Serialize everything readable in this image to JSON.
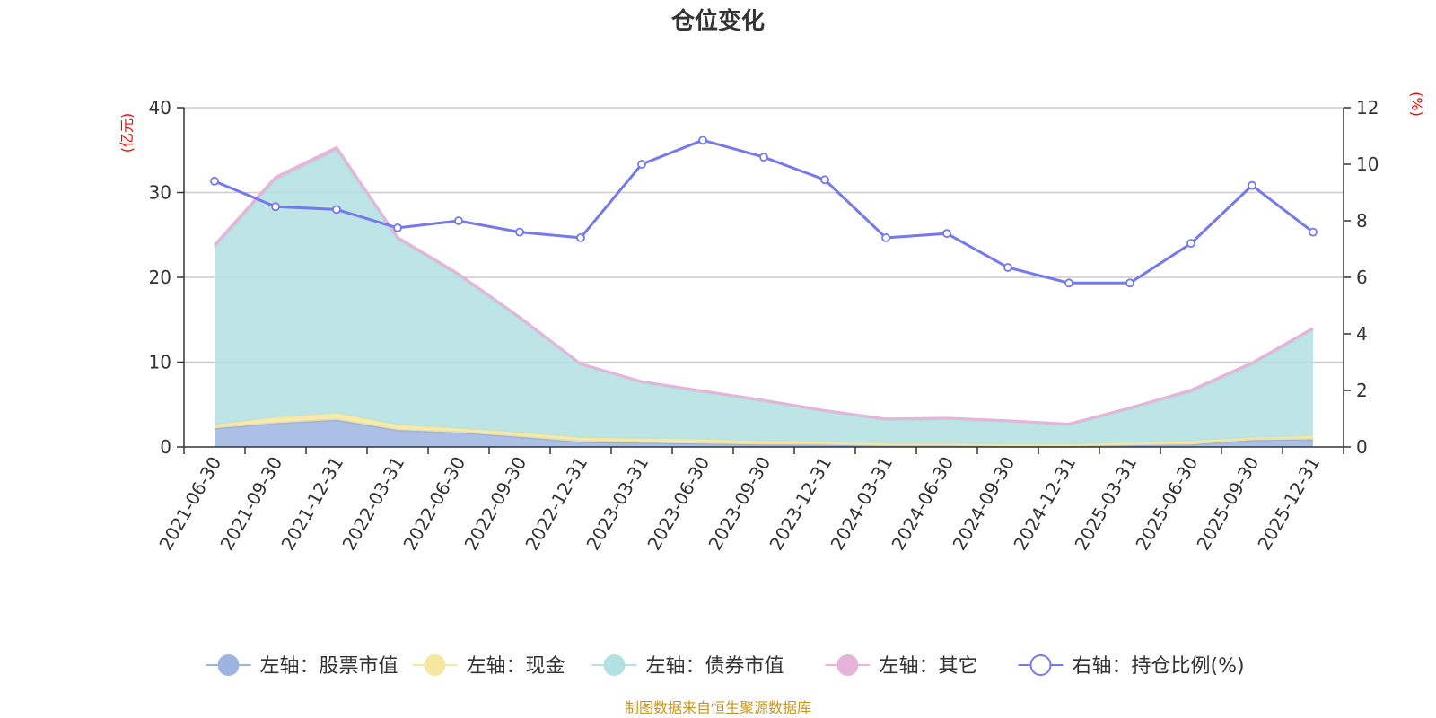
{
  "chart_data": {
    "type": "area",
    "title": "仓位变化",
    "left_axis_unit": "(亿元)",
    "right_axis_unit": "(%)",
    "ylim_left": [
      0,
      40
    ],
    "yticks_left": [
      0,
      10,
      20,
      30,
      40
    ],
    "ylim_right": [
      0,
      12
    ],
    "yticks_right": [
      0,
      2,
      4,
      6,
      8,
      10,
      12
    ],
    "categories": [
      "2021-06-30",
      "2021-09-30",
      "2021-12-31",
      "2022-03-31",
      "2022-06-30",
      "2022-09-30",
      "2022-12-31",
      "2023-03-31",
      "2023-06-30",
      "2023-09-30",
      "2023-12-31",
      "2024-03-31",
      "2024-06-30",
      "2024-09-30",
      "2024-12-31",
      "2025-03-31",
      "2025-06-30",
      "2025-09-30",
      "2025-12-31"
    ],
    "stacked_series": [
      {
        "name": "左轴：股票市值",
        "color": "#9db4e0",
        "values": [
          2.2,
          2.8,
          3.2,
          2.0,
          1.7,
          1.2,
          0.6,
          0.5,
          0.4,
          0.3,
          0.25,
          0.15,
          0.15,
          0.1,
          0.1,
          0.2,
          0.3,
          0.8,
          0.9
        ]
      },
      {
        "name": "左轴：现金",
        "color": "#f5e6a0",
        "values": [
          0.4,
          0.7,
          0.8,
          0.6,
          0.5,
          0.5,
          0.5,
          0.5,
          0.5,
          0.4,
          0.35,
          0.25,
          0.25,
          0.2,
          0.2,
          0.3,
          0.4,
          0.3,
          0.4
        ]
      },
      {
        "name": "左轴：债券市值",
        "color": "#b3e0e0",
        "values": [
          20.9,
          28.0,
          31.0,
          21.9,
          18.0,
          13.4,
          8.6,
          6.6,
          5.6,
          4.7,
          3.6,
          2.8,
          2.9,
          2.7,
          2.3,
          4.0,
          5.8,
          8.6,
          12.5
        ]
      },
      {
        "name": "左轴：其它",
        "color": "#e6b3d9",
        "values": [
          0.3,
          0.3,
          0.3,
          0.2,
          0.2,
          0.2,
          0.1,
          0.1,
          0.1,
          0.1,
          0.1,
          0.1,
          0.1,
          0.1,
          0.1,
          0.1,
          0.2,
          0.2,
          0.2
        ]
      }
    ],
    "line_series": {
      "name": "右轴：持仓比例(%)",
      "color": "#7479ec",
      "values": [
        9.4,
        8.5,
        8.4,
        7.75,
        8.0,
        7.6,
        7.4,
        10.0,
        10.85,
        10.25,
        9.45,
        7.4,
        7.55,
        6.35,
        5.8,
        5.8,
        7.2,
        9.25,
        7.6
      ]
    }
  },
  "legend": [
    {
      "label": "左轴：股票市值",
      "color": "#9db4e0",
      "style": "filled"
    },
    {
      "label": "左轴：现金",
      "color": "#f5e6a0",
      "style": "filled"
    },
    {
      "label": "左轴：债券市值",
      "color": "#b3e0e0",
      "style": "filled"
    },
    {
      "label": "左轴：其它",
      "color": "#e6b3d9",
      "style": "filled"
    },
    {
      "label": "右轴：持仓比例(%)",
      "color": "#7479ec",
      "style": "hollow"
    }
  ],
  "source_note": "制图数据来自恒生聚源数据库"
}
